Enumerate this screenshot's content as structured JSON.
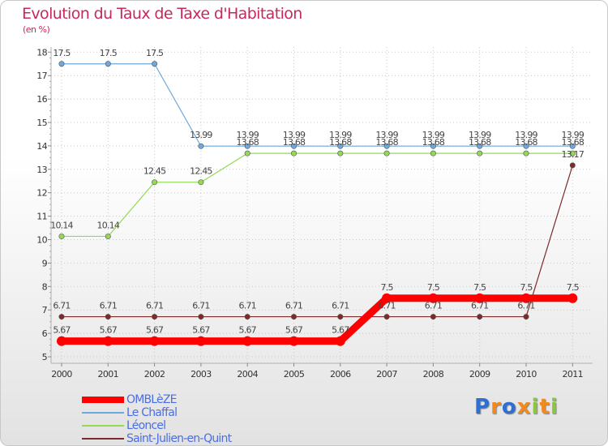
{
  "chart_data": {
    "type": "line",
    "title": "Evolution du Taux de Taxe d'Habitation",
    "unit_label": "(en %)",
    "xlabel": "",
    "ylabel": "",
    "ylim": [
      5,
      18
    ],
    "y_ticks": [
      "5",
      "6",
      "7",
      "8",
      "9",
      "10",
      "11",
      "12",
      "13",
      "14",
      "15",
      "16",
      "17",
      "18"
    ],
    "categories": [
      "2000",
      "2001",
      "2002",
      "2003",
      "2004",
      "2005",
      "2006",
      "2007",
      "2008",
      "2009",
      "2010",
      "2011"
    ],
    "legend_position": "bottom-left",
    "series": [
      {
        "name": "Le Chaffal",
        "color": "#6fa8dc",
        "values": [
          17.5,
          17.5,
          17.5,
          13.99,
          13.99,
          13.99,
          13.99,
          13.99,
          13.99,
          13.99,
          13.99,
          13.99
        ],
        "labels": [
          "17.5",
          "17.5",
          "17.5",
          "13.99",
          "13.99",
          "13.99",
          "13.99",
          "13.99",
          "13.99",
          "13.99",
          "13.99",
          "13.99"
        ]
      },
      {
        "name": "Léoncel",
        "color": "#93d955",
        "values": [
          10.14,
          10.14,
          12.45,
          12.45,
          13.68,
          13.68,
          13.68,
          13.68,
          13.68,
          13.68,
          13.68,
          13.68
        ],
        "labels": [
          "10.14",
          "10.14",
          "12.45",
          "12.45",
          "13.68",
          "13.68",
          "13.68",
          "13.68",
          "13.68",
          "13.68",
          "13.68",
          "13.68"
        ]
      },
      {
        "name": "Saint-Julien-en-Quint",
        "color": "#7a2b2b",
        "values": [
          6.71,
          6.71,
          6.71,
          6.71,
          6.71,
          6.71,
          6.71,
          6.71,
          6.71,
          6.71,
          6.71,
          13.17
        ],
        "labels": [
          "6.71",
          "6.71",
          "6.71",
          "6.71",
          "6.71",
          "6.71",
          "6.71",
          "6.71",
          "6.71",
          "6.71",
          "6.71",
          "13.17"
        ]
      },
      {
        "name": "OMBLèZE",
        "color": "#ff0000",
        "values": [
          5.67,
          5.67,
          5.67,
          5.67,
          5.67,
          5.67,
          5.67,
          7.5,
          7.5,
          7.5,
          7.5,
          7.5
        ],
        "labels": [
          "5.67",
          "5.67",
          "5.67",
          "5.67",
          "5.67",
          "5.67",
          "5.67",
          "7.5",
          "7.5",
          "7.5",
          "7.5",
          "7.5"
        ]
      }
    ]
  },
  "legend": {
    "items": [
      {
        "name": "OMBLèZE",
        "color": "#ff0000"
      },
      {
        "name": "Le Chaffal",
        "color": "#6fa8dc"
      },
      {
        "name": "Léoncel",
        "color": "#93d955"
      },
      {
        "name": "Saint-Julien-en-Quint",
        "color": "#7a2b2b"
      }
    ]
  },
  "logo": {
    "text": "Proxiti",
    "letters": [
      {
        "ch": "P",
        "color": "#2e6fd1"
      },
      {
        "ch": "r",
        "color": "#f08a1c"
      },
      {
        "ch": "o",
        "color": "#2e6fd1"
      },
      {
        "ch": "x",
        "color": "#f08a1c"
      },
      {
        "ch": "i",
        "color": "#8cc63f"
      },
      {
        "ch": "t",
        "color": "#f08a1c"
      },
      {
        "ch": "i",
        "color": "#8cc63f"
      }
    ]
  }
}
